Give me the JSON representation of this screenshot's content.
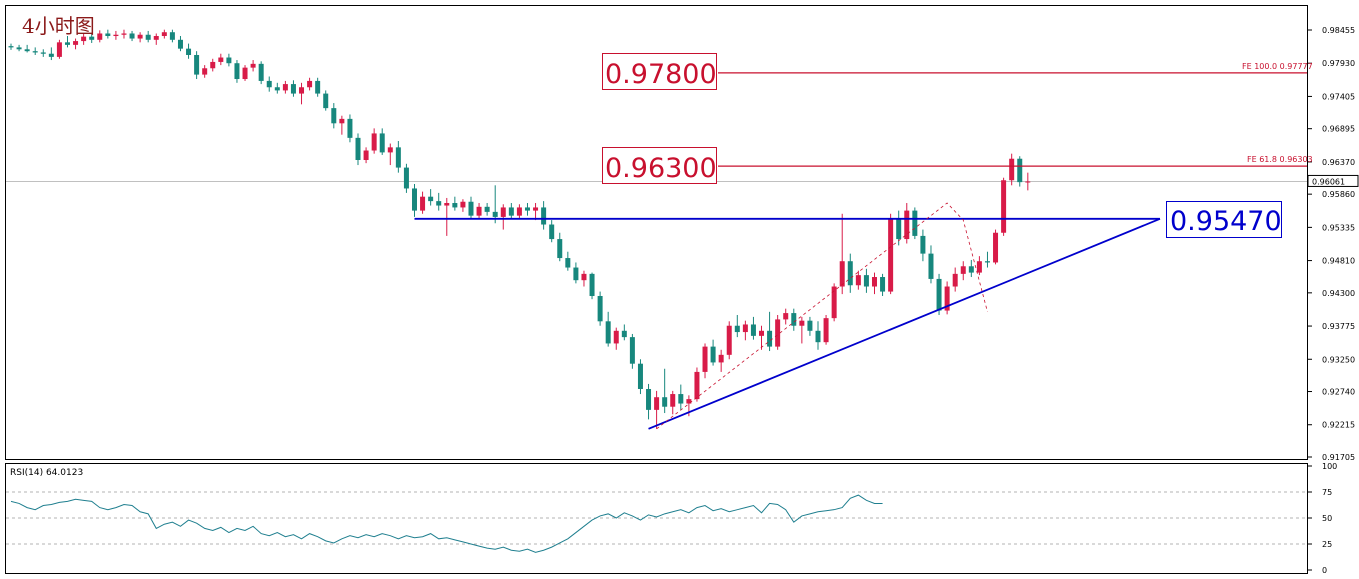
{
  "title": "4小时图",
  "chart_data": {
    "type": "candlestick",
    "price_axis": {
      "ticks": [
        "0.98455",
        "0.97930",
        "0.97405",
        "0.96895",
        "0.96370",
        "0.95860",
        "0.95335",
        "0.94810",
        "0.94300",
        "0.93775",
        "0.93250",
        "0.92740",
        "0.92215",
        "0.91705"
      ],
      "ylim": [
        0.91705,
        0.98455
      ]
    },
    "current_price": "0.96061",
    "levels": [
      {
        "label": "0.97800",
        "value": 0.97777,
        "fe_label": "FE 100.0  0.97777",
        "color": "#c8102e"
      },
      {
        "label": "0.96300",
        "value": 0.96303,
        "fe_label": "FE 61.8  0.96303",
        "color": "#c8102e"
      },
      {
        "label": "0.95470",
        "value": 0.9547,
        "color": "#0000cc"
      }
    ],
    "candles_ohlc": [
      [
        0.982,
        0.9824,
        0.9814,
        0.9818
      ],
      [
        0.9818,
        0.9822,
        0.9812,
        0.9815
      ],
      [
        0.9815,
        0.9822,
        0.981,
        0.9812
      ],
      [
        0.9812,
        0.9818,
        0.9806,
        0.981
      ],
      [
        0.981,
        0.9815,
        0.9803,
        0.9808
      ],
      [
        0.9808,
        0.9818,
        0.9798,
        0.9803
      ],
      [
        0.9803,
        0.983,
        0.98,
        0.9826
      ],
      [
        0.9826,
        0.9836,
        0.9818,
        0.9822
      ],
      [
        0.9822,
        0.9832,
        0.9815,
        0.9828
      ],
      [
        0.9828,
        0.984,
        0.9822,
        0.9835
      ],
      [
        0.9835,
        0.984,
        0.9825,
        0.983
      ],
      [
        0.983,
        0.9845,
        0.9826,
        0.984
      ],
      [
        0.984,
        0.9846,
        0.9832,
        0.9836
      ],
      [
        0.9836,
        0.9844,
        0.983,
        0.9838
      ],
      [
        0.9838,
        0.9846,
        0.9832,
        0.984
      ],
      [
        0.984,
        0.9844,
        0.9828,
        0.9832
      ],
      [
        0.9832,
        0.9842,
        0.9826,
        0.9838
      ],
      [
        0.9838,
        0.9844,
        0.9826,
        0.983
      ],
      [
        0.983,
        0.984,
        0.9822,
        0.9836
      ],
      [
        0.9836,
        0.9846,
        0.9832,
        0.9842
      ],
      [
        0.9842,
        0.9846,
        0.9826,
        0.983
      ],
      [
        0.983,
        0.9836,
        0.9812,
        0.9816
      ],
      [
        0.9816,
        0.9824,
        0.98,
        0.9806
      ],
      [
        0.9806,
        0.9812,
        0.9768,
        0.9775
      ],
      [
        0.9775,
        0.979,
        0.977,
        0.9785
      ],
      [
        0.9785,
        0.98,
        0.978,
        0.9795
      ],
      [
        0.9795,
        0.9808,
        0.979,
        0.9802
      ],
      [
        0.9802,
        0.9808,
        0.9788,
        0.9793
      ],
      [
        0.9793,
        0.9798,
        0.9762,
        0.9768
      ],
      [
        0.9768,
        0.979,
        0.9765,
        0.9786
      ],
      [
        0.9786,
        0.9798,
        0.978,
        0.9792
      ],
      [
        0.9792,
        0.9796,
        0.976,
        0.9765
      ],
      [
        0.9765,
        0.9772,
        0.9748,
        0.9755
      ],
      [
        0.9755,
        0.9762,
        0.9745,
        0.975
      ],
      [
        0.975,
        0.9765,
        0.9745,
        0.976
      ],
      [
        0.976,
        0.9766,
        0.974,
        0.9745
      ],
      [
        0.9745,
        0.9762,
        0.9728,
        0.9755
      ],
      [
        0.9755,
        0.977,
        0.975,
        0.9765
      ],
      [
        0.9765,
        0.977,
        0.974,
        0.9745
      ],
      [
        0.9745,
        0.975,
        0.9718,
        0.9722
      ],
      [
        0.9722,
        0.973,
        0.969,
        0.9698
      ],
      [
        0.9698,
        0.971,
        0.968,
        0.9705
      ],
      [
        0.9705,
        0.9712,
        0.9668,
        0.9675
      ],
      [
        0.9675,
        0.9682,
        0.9632,
        0.964
      ],
      [
        0.964,
        0.966,
        0.9635,
        0.9655
      ],
      [
        0.9655,
        0.969,
        0.965,
        0.9682
      ],
      [
        0.9682,
        0.969,
        0.9648,
        0.9652
      ],
      [
        0.9652,
        0.9666,
        0.9632,
        0.966
      ],
      [
        0.966,
        0.967,
        0.962,
        0.9628
      ],
      [
        0.9628,
        0.9634,
        0.9588,
        0.9595
      ],
      [
        0.9595,
        0.9602,
        0.955,
        0.956
      ],
      [
        0.956,
        0.959,
        0.9555,
        0.9582
      ],
      [
        0.9582,
        0.9594,
        0.9568,
        0.9575
      ],
      [
        0.9575,
        0.9588,
        0.956,
        0.9568
      ],
      [
        0.9568,
        0.958,
        0.952,
        0.9572
      ],
      [
        0.9572,
        0.9582,
        0.956,
        0.9565
      ],
      [
        0.9565,
        0.9578,
        0.9558,
        0.9574
      ],
      [
        0.9574,
        0.9582,
        0.9548,
        0.9552
      ],
      [
        0.9552,
        0.9572,
        0.9546,
        0.9566
      ],
      [
        0.9566,
        0.9572,
        0.9552,
        0.9558
      ],
      [
        0.9558,
        0.96,
        0.954,
        0.955
      ],
      [
        0.955,
        0.957,
        0.953,
        0.9565
      ],
      [
        0.9565,
        0.9572,
        0.9548,
        0.9552
      ],
      [
        0.9552,
        0.957,
        0.9548,
        0.9565
      ],
      [
        0.9565,
        0.9572,
        0.9552,
        0.956
      ],
      [
        0.956,
        0.9572,
        0.9545,
        0.9565
      ],
      [
        0.9565,
        0.9575,
        0.953,
        0.9538
      ],
      [
        0.9538,
        0.9545,
        0.951,
        0.9515
      ],
      [
        0.9515,
        0.9525,
        0.948,
        0.9485
      ],
      [
        0.9485,
        0.9495,
        0.9465,
        0.947
      ],
      [
        0.947,
        0.9478,
        0.9445,
        0.945
      ],
      [
        0.945,
        0.9465,
        0.944,
        0.946
      ],
      [
        0.946,
        0.9462,
        0.942,
        0.9425
      ],
      [
        0.9425,
        0.9432,
        0.9378,
        0.9385
      ],
      [
        0.9385,
        0.94,
        0.9345,
        0.935
      ],
      [
        0.935,
        0.9375,
        0.934,
        0.937
      ],
      [
        0.937,
        0.938,
        0.9355,
        0.936
      ],
      [
        0.936,
        0.9365,
        0.931,
        0.9318
      ],
      [
        0.9318,
        0.9325,
        0.927,
        0.9278
      ],
      [
        0.9278,
        0.9286,
        0.923,
        0.9245
      ],
      [
        0.9245,
        0.9275,
        0.9215,
        0.9265
      ],
      [
        0.9265,
        0.931,
        0.924,
        0.925
      ],
      [
        0.925,
        0.9275,
        0.9238,
        0.927
      ],
      [
        0.927,
        0.9285,
        0.9245,
        0.9255
      ],
      [
        0.9255,
        0.9268,
        0.9235,
        0.9262
      ],
      [
        0.9262,
        0.9312,
        0.9258,
        0.9305
      ],
      [
        0.9305,
        0.935,
        0.9295,
        0.9345
      ],
      [
        0.9345,
        0.9356,
        0.9315,
        0.932
      ],
      [
        0.932,
        0.934,
        0.9305,
        0.9332
      ],
      [
        0.9332,
        0.9385,
        0.9325,
        0.9378
      ],
      [
        0.9378,
        0.9395,
        0.936,
        0.9368
      ],
      [
        0.9368,
        0.9386,
        0.9355,
        0.938
      ],
      [
        0.938,
        0.9392,
        0.9356,
        0.9362
      ],
      [
        0.9362,
        0.9378,
        0.934,
        0.937
      ],
      [
        0.937,
        0.94,
        0.9338,
        0.9345
      ],
      [
        0.9345,
        0.9395,
        0.934,
        0.9388
      ],
      [
        0.9388,
        0.9405,
        0.938,
        0.9398
      ],
      [
        0.9398,
        0.9405,
        0.937,
        0.9378
      ],
      [
        0.9378,
        0.9392,
        0.935,
        0.9386
      ],
      [
        0.9386,
        0.9392,
        0.9362,
        0.937
      ],
      [
        0.937,
        0.9385,
        0.934,
        0.9352
      ],
      [
        0.9352,
        0.9395,
        0.9348,
        0.939
      ],
      [
        0.939,
        0.9445,
        0.9385,
        0.944
      ],
      [
        0.944,
        0.9555,
        0.9428,
        0.948
      ],
      [
        0.948,
        0.9492,
        0.943,
        0.9442
      ],
      [
        0.9442,
        0.9465,
        0.9435,
        0.9458
      ],
      [
        0.9458,
        0.9468,
        0.943,
        0.944
      ],
      [
        0.944,
        0.9462,
        0.9428,
        0.9455
      ],
      [
        0.9455,
        0.946,
        0.9425,
        0.9432
      ],
      [
        0.9432,
        0.9555,
        0.9428,
        0.9548
      ],
      [
        0.9548,
        0.956,
        0.9505,
        0.9515
      ],
      [
        0.9515,
        0.9572,
        0.9508,
        0.956
      ],
      [
        0.956,
        0.9565,
        0.9515,
        0.952
      ],
      [
        0.952,
        0.953,
        0.948,
        0.9492
      ],
      [
        0.9492,
        0.9505,
        0.9445,
        0.9452
      ],
      [
        0.9452,
        0.946,
        0.9395,
        0.9402
      ],
      [
        0.9402,
        0.9448,
        0.9396,
        0.944
      ],
      [
        0.944,
        0.947,
        0.9432,
        0.946
      ],
      [
        0.946,
        0.948,
        0.945,
        0.9472
      ],
      [
        0.9472,
        0.9482,
        0.9455,
        0.9462
      ],
      [
        0.9462,
        0.9488,
        0.9458,
        0.948
      ],
      [
        0.948,
        0.9495,
        0.947,
        0.9478
      ],
      [
        0.9478,
        0.953,
        0.9475,
        0.9525
      ],
      [
        0.9525,
        0.9612,
        0.952,
        0.9608
      ],
      [
        0.9608,
        0.965,
        0.96,
        0.9642
      ],
      [
        0.9642,
        0.9646,
        0.9598,
        0.9605
      ],
      [
        0.9605,
        0.962,
        0.9592,
        0.9606
      ]
    ],
    "rsi": {
      "label": "RSI(14) 64.0123",
      "ticks": [
        "100",
        "75",
        "50",
        "25",
        "0"
      ],
      "levels": [
        75,
        50,
        25
      ],
      "values": [
        66,
        64,
        60,
        58,
        62,
        63,
        65,
        66,
        68,
        67,
        66,
        60,
        58,
        60,
        63,
        62,
        56,
        54,
        40,
        44,
        46,
        42,
        48,
        45,
        40,
        38,
        41,
        36,
        40,
        38,
        42,
        35,
        33,
        36,
        32,
        34,
        30,
        35,
        32,
        28,
        26,
        30,
        33,
        31,
        34,
        32,
        35,
        33,
        30,
        33,
        31,
        32,
        35,
        30,
        31,
        29,
        27,
        25,
        23,
        21,
        20,
        22,
        19,
        18,
        20,
        17,
        19,
        22,
        26,
        30,
        36,
        42,
        48,
        52,
        54,
        50,
        55,
        52,
        48,
        53,
        51,
        54,
        56,
        58,
        55,
        60,
        62,
        57,
        59,
        56,
        58,
        60,
        62,
        55,
        64,
        63,
        58,
        46,
        52,
        54,
        56,
        57,
        58,
        60,
        69,
        72,
        67,
        64,
        64
      ]
    },
    "trendline": {
      "from": [
        79,
        0.9215
      ],
      "to": [
        130,
        0.9547
      ]
    },
    "horizontal_line": {
      "value": 0.9547,
      "from_index": 50,
      "to_index": 130
    }
  }
}
